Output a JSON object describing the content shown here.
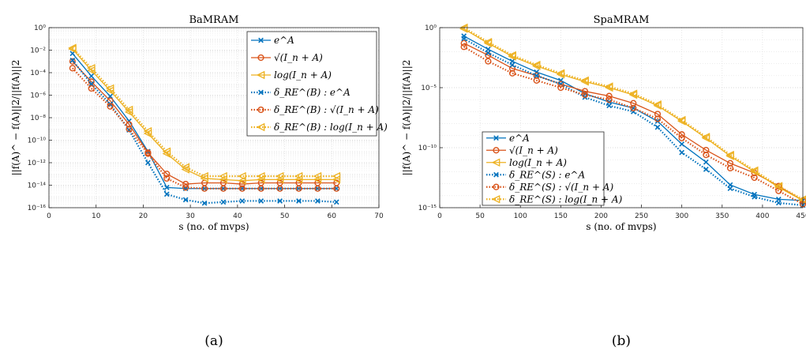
{
  "chart_data": [
    {
      "type": "line",
      "title": "BaMRAM",
      "xlabel": "s (no. of mvps)",
      "ylabel": "||f(A)^ − f(A)||2/||f(A)||2",
      "subfigure_label": "(a)",
      "xlim": [
        0,
        70
      ],
      "ylim_log10": [
        -16,
        0
      ],
      "yscale": "log",
      "grid": "on",
      "legend_position": "top-right",
      "x_ticks": [
        "0",
        "10",
        "20",
        "30",
        "40",
        "50",
        "60",
        "70"
      ],
      "y_ticks": [
        "10⁰",
        "10⁻²",
        "10⁻⁴",
        "10⁻⁶",
        "10⁻⁸",
        "10⁻¹⁰",
        "10⁻¹²",
        "10⁻¹⁴",
        "10⁻¹⁶"
      ],
      "x": [
        5,
        9,
        13,
        17,
        21,
        25,
        29,
        33,
        37,
        41,
        45,
        49,
        53,
        57,
        61
      ],
      "series": [
        {
          "name": "e^A",
          "color": "#0072bd",
          "style": "solid",
          "marker": "x",
          "log10_y": [
            -2.3,
            -4.3,
            -6.1,
            -8.3,
            -11.0,
            -14.2,
            -14.3,
            -14.3,
            -14.3,
            -14.3,
            -14.3,
            -14.3,
            -14.3,
            -14.3,
            -14.3
          ]
        },
        {
          "name": "√(I_n + A)",
          "color": "#d95319",
          "style": "solid",
          "marker": "o",
          "log10_y": [
            -3.0,
            -4.8,
            -6.5,
            -8.6,
            -11.1,
            -13.0,
            -13.9,
            -13.8,
            -13.8,
            -13.9,
            -13.8,
            -13.8,
            -13.8,
            -13.8,
            -13.8
          ]
        },
        {
          "name": "log(I_n + A)",
          "color": "#edb120",
          "style": "solid",
          "marker": "<",
          "log10_y": [
            -1.9,
            -3.8,
            -5.6,
            -7.5,
            -9.4,
            -11.2,
            -12.6,
            -13.4,
            -13.5,
            -13.6,
            -13.5,
            -13.5,
            -13.5,
            -13.5,
            -13.5
          ]
        },
        {
          "name": "δ_RE^(B) : e^A",
          "color": "#0072bd",
          "style": "dotted",
          "marker": "x",
          "log10_y": [
            -2.9,
            -5.0,
            -6.8,
            -9.1,
            -12.0,
            -14.8,
            -15.3,
            -15.6,
            -15.5,
            -15.4,
            -15.4,
            -15.4,
            -15.4,
            -15.4,
            -15.5
          ]
        },
        {
          "name": "δ_RE^(B) : √(I_n + A)",
          "color": "#d95319",
          "style": "dotted",
          "marker": "o",
          "log10_y": [
            -3.6,
            -5.4,
            -7.0,
            -9.0,
            -11.2,
            -13.4,
            -14.2,
            -14.3,
            -14.3,
            -14.3,
            -14.3,
            -14.3,
            -14.3,
            -14.3,
            -14.3
          ]
        },
        {
          "name": "δ_RE^(B) : log(I_n + A)",
          "color": "#edb120",
          "style": "dotted",
          "marker": "<",
          "log10_y": [
            -1.8,
            -3.6,
            -5.4,
            -7.3,
            -9.2,
            -11.0,
            -12.4,
            -13.2,
            -13.2,
            -13.2,
            -13.2,
            -13.2,
            -13.2,
            -13.2,
            -13.2
          ]
        }
      ]
    },
    {
      "type": "line",
      "title": "SpaMRAM",
      "xlabel": "s (no. of mvps)",
      "ylabel": "||f(A)^ − f(A)||2/||f(A)||2",
      "subfigure_label": "(b)",
      "xlim": [
        0,
        450
      ],
      "ylim_log10": [
        -15,
        0
      ],
      "yscale": "log",
      "grid": "on",
      "legend_position": "bottom-left",
      "x_ticks": [
        "0",
        "50",
        "100",
        "150",
        "200",
        "250",
        "300",
        "350",
        "400",
        "450"
      ],
      "y_ticks": [
        "10⁰",
        "10⁻⁵",
        "10⁻¹⁰",
        "10⁻¹⁵"
      ],
      "x": [
        30,
        60,
        90,
        120,
        150,
        180,
        210,
        240,
        270,
        300,
        330,
        360,
        390,
        420,
        450
      ],
      "series": [
        {
          "name": "e^A",
          "color": "#0072bd",
          "style": "solid",
          "marker": "x",
          "log10_y": [
            -0.7,
            -1.8,
            -2.8,
            -3.7,
            -4.4,
            -5.5,
            -6.2,
            -6.7,
            -7.8,
            -9.7,
            -11.2,
            -13.1,
            -13.9,
            -14.3,
            -14.4
          ]
        },
        {
          "name": "√(I_n + A)",
          "color": "#d95319",
          "style": "solid",
          "marker": "o",
          "log10_y": [
            -1.3,
            -2.3,
            -3.4,
            -4.0,
            -4.7,
            -5.3,
            -5.7,
            -6.3,
            -7.2,
            -8.9,
            -10.2,
            -11.3,
            -12.1,
            -13.2,
            -14.4
          ]
        },
        {
          "name": "log(I_n + A)",
          "color": "#edb120",
          "style": "solid",
          "marker": "<",
          "log10_y": [
            -0.1,
            -1.3,
            -2.4,
            -3.2,
            -3.9,
            -4.5,
            -5.0,
            -5.6,
            -6.5,
            -7.8,
            -9.2,
            -10.7,
            -12.0,
            -13.3,
            -14.4
          ]
        },
        {
          "name": "δ_RE^(S) : e^A",
          "color": "#0072bd",
          "style": "dotted",
          "marker": "x",
          "log10_y": [
            -0.9,
            -2.1,
            -3.1,
            -4.0,
            -4.7,
            -5.8,
            -6.5,
            -7.0,
            -8.3,
            -10.4,
            -11.8,
            -13.4,
            -14.1,
            -14.6,
            -14.8
          ]
        },
        {
          "name": "δ_RE^(S) : √(I_n + A)",
          "color": "#d95319",
          "style": "dotted",
          "marker": "o",
          "log10_y": [
            -1.6,
            -2.8,
            -3.8,
            -4.4,
            -5.0,
            -5.6,
            -6.0,
            -6.7,
            -7.6,
            -9.2,
            -10.6,
            -11.7,
            -12.5,
            -13.6,
            -14.7
          ]
        },
        {
          "name": "δ_RE^(S) : log(I_n + A)",
          "color": "#edb120",
          "style": "dotted",
          "marker": "<",
          "log10_y": [
            0.0,
            -1.2,
            -2.3,
            -3.1,
            -3.8,
            -4.4,
            -4.9,
            -5.5,
            -6.4,
            -7.7,
            -9.1,
            -10.6,
            -11.9,
            -13.2,
            -14.3
          ]
        }
      ]
    }
  ]
}
